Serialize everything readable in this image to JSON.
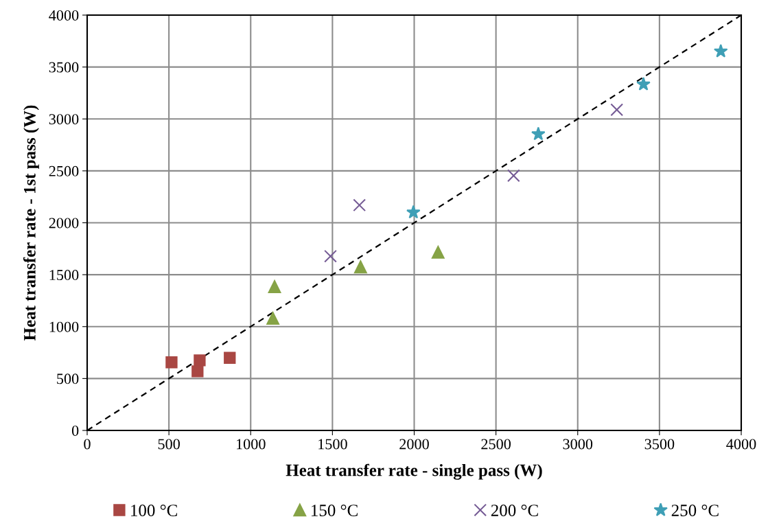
{
  "chart_data": {
    "type": "scatter",
    "xlabel": "Heat transfer rate - single pass (W)",
    "ylabel": "Heat transfer rate - 1st pass (W)",
    "xlim": [
      0,
      4000
    ],
    "ylim": [
      0,
      4000
    ],
    "xticks": [
      0,
      500,
      1000,
      1500,
      2000,
      2500,
      3000,
      3500,
      4000
    ],
    "yticks": [
      0,
      500,
      1000,
      1500,
      2000,
      2500,
      3000,
      3500,
      4000
    ],
    "grid": true,
    "legend": "bottom",
    "series": [
      {
        "name": "100 °C",
        "color": "#a94743",
        "marker": "square",
        "x": [
          516,
          688,
          675,
          872
        ],
        "values": [
          656,
          675,
          569,
          699
        ]
      },
      {
        "name": "150 °C",
        "color": "#86a346",
        "marker": "triangle",
        "x": [
          1146,
          1136,
          1672,
          2146
        ],
        "values": [
          1385,
          1080,
          1575,
          1716
        ]
      },
      {
        "name": "200 °C",
        "color": "#745a94",
        "marker": "cross",
        "x": [
          1488,
          1665,
          2608,
          3239
        ],
        "values": [
          1678,
          2170,
          2454,
          3088
        ]
      },
      {
        "name": "250 °C",
        "color": "#3f9fb6",
        "marker": "star",
        "x": [
          1995,
          2759,
          3402,
          3875
        ],
        "values": [
          2100,
          2854,
          3333,
          3651
        ]
      },
      {
        "type": "line",
        "color": "#000000",
        "line_style": "dashed",
        "marker": "none",
        "x": [
          0,
          4000
        ],
        "values": [
          0,
          4000
        ]
      }
    ]
  }
}
